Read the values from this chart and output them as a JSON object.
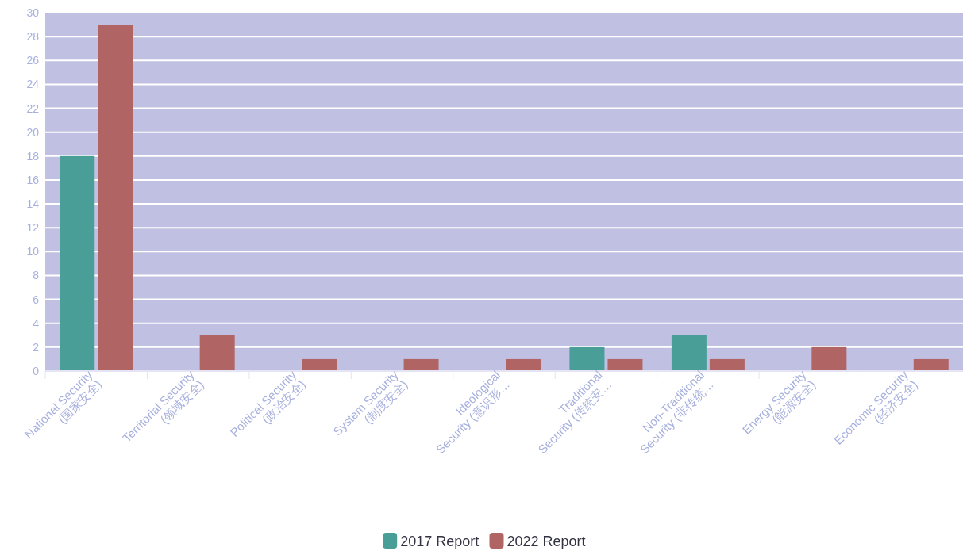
{
  "chart_data": {
    "type": "bar",
    "categories": [
      "National Security\n(国家安全)",
      "Territorial Security\n(领域安全)",
      "Political Security\n(政治安全)",
      "System Security\n(制度安全)",
      "Ideological\nSecurity (意识形…",
      "Traditional\nSecurity (传统安…",
      "Non-Traditional\nSecurity (非传统…",
      "Energy Security\n(能源安全)",
      "Economic Security\n(经济安全)"
    ],
    "series": [
      {
        "name": "2017 Report",
        "color": "#4a9e98",
        "values": [
          18,
          0,
          0,
          0,
          0,
          2,
          3,
          0,
          0
        ]
      },
      {
        "name": "2022 Report",
        "color": "#b06464",
        "values": [
          29,
          3,
          1,
          1,
          1,
          1,
          1,
          2,
          1
        ]
      }
    ],
    "ylim": [
      0,
      30
    ],
    "yticks": [
      0,
      2,
      4,
      6,
      8,
      10,
      12,
      14,
      16,
      18,
      20,
      22,
      24,
      26,
      28,
      30
    ],
    "grid": "y",
    "legend": "bottom"
  }
}
